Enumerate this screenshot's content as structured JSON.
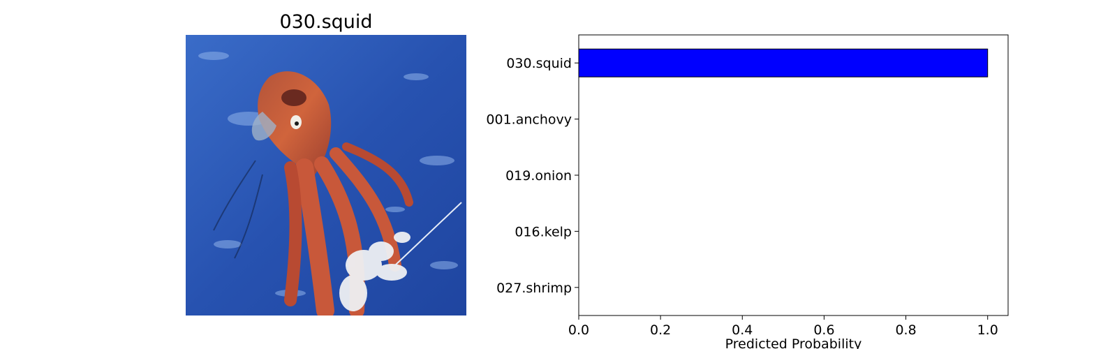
{
  "image_panel": {
    "title": "030.squid"
  },
  "chart_data": {
    "type": "bar",
    "orientation": "horizontal",
    "categories": [
      "030.squid",
      "001.anchovy",
      "019.onion",
      "016.kelp",
      "027.shrimp"
    ],
    "values": [
      1.0,
      0.0,
      0.0,
      0.0,
      0.0
    ],
    "xlabel": "Predicted Probability",
    "ylabel": "",
    "xlim": [
      0.0,
      1.05
    ],
    "xticks": [
      "0.0",
      "0.2",
      "0.4",
      "0.6",
      "0.8",
      "1.0"
    ],
    "grid": false,
    "bar_color": "#0000ff",
    "bar_edge_color": "#000000"
  }
}
